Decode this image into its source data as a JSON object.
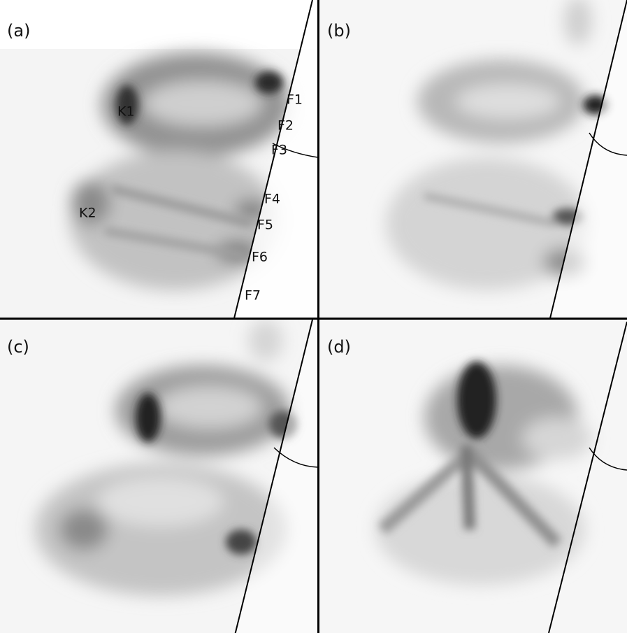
{
  "panels": [
    {
      "label": "(a)",
      "annotations": [
        "K1",
        "K2",
        "F1",
        "F2",
        "F3",
        "F4",
        "F5",
        "F6",
        "F7"
      ]
    },
    {
      "label": "(b)"
    },
    {
      "label": "(c)"
    },
    {
      "label": "(d)"
    }
  ]
}
